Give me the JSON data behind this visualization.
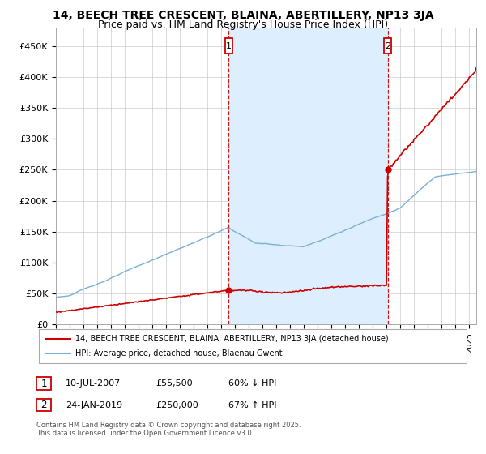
{
  "title": "14, BEECH TREE CRESCENT, BLAINA, ABERTILLERY, NP13 3JA",
  "subtitle": "Price paid vs. HM Land Registry's House Price Index (HPI)",
  "legend_line1": "14, BEECH TREE CRESCENT, BLAINA, ABERTILLERY, NP13 3JA (detached house)",
  "legend_line2": "HPI: Average price, detached house, Blaenau Gwent",
  "annotation1_date": "10-JUL-2007",
  "annotation1_price": "£55,500",
  "annotation1_hpi": "60% ↓ HPI",
  "annotation2_date": "24-JAN-2019",
  "annotation2_price": "£250,000",
  "annotation2_hpi": "67% ↑ HPI",
  "footer": "Contains HM Land Registry data © Crown copyright and database right 2025.\nThis data is licensed under the Open Government Licence v3.0.",
  "ylabel_ticks": [
    "£0",
    "£50K",
    "£100K",
    "£150K",
    "£200K",
    "£250K",
    "£300K",
    "£350K",
    "£400K",
    "£450K"
  ],
  "ytick_values": [
    0,
    50000,
    100000,
    150000,
    200000,
    250000,
    300000,
    350000,
    400000,
    450000
  ],
  "ylim": [
    0,
    480000
  ],
  "xlim_left": 1995.0,
  "xlim_right": 2025.5,
  "price_line_color": "#cc0000",
  "hpi_line_color": "#7ab0d4",
  "vline_color": "#cc0000",
  "shade_color": "#ddeeff",
  "marker1_x": 2007.53,
  "marker1_y": 55500,
  "marker2_x": 2019.07,
  "marker2_y": 250000,
  "background_color": "#ffffff",
  "grid_color": "#cccccc",
  "title_fontsize": 10,
  "subtitle_fontsize": 9
}
